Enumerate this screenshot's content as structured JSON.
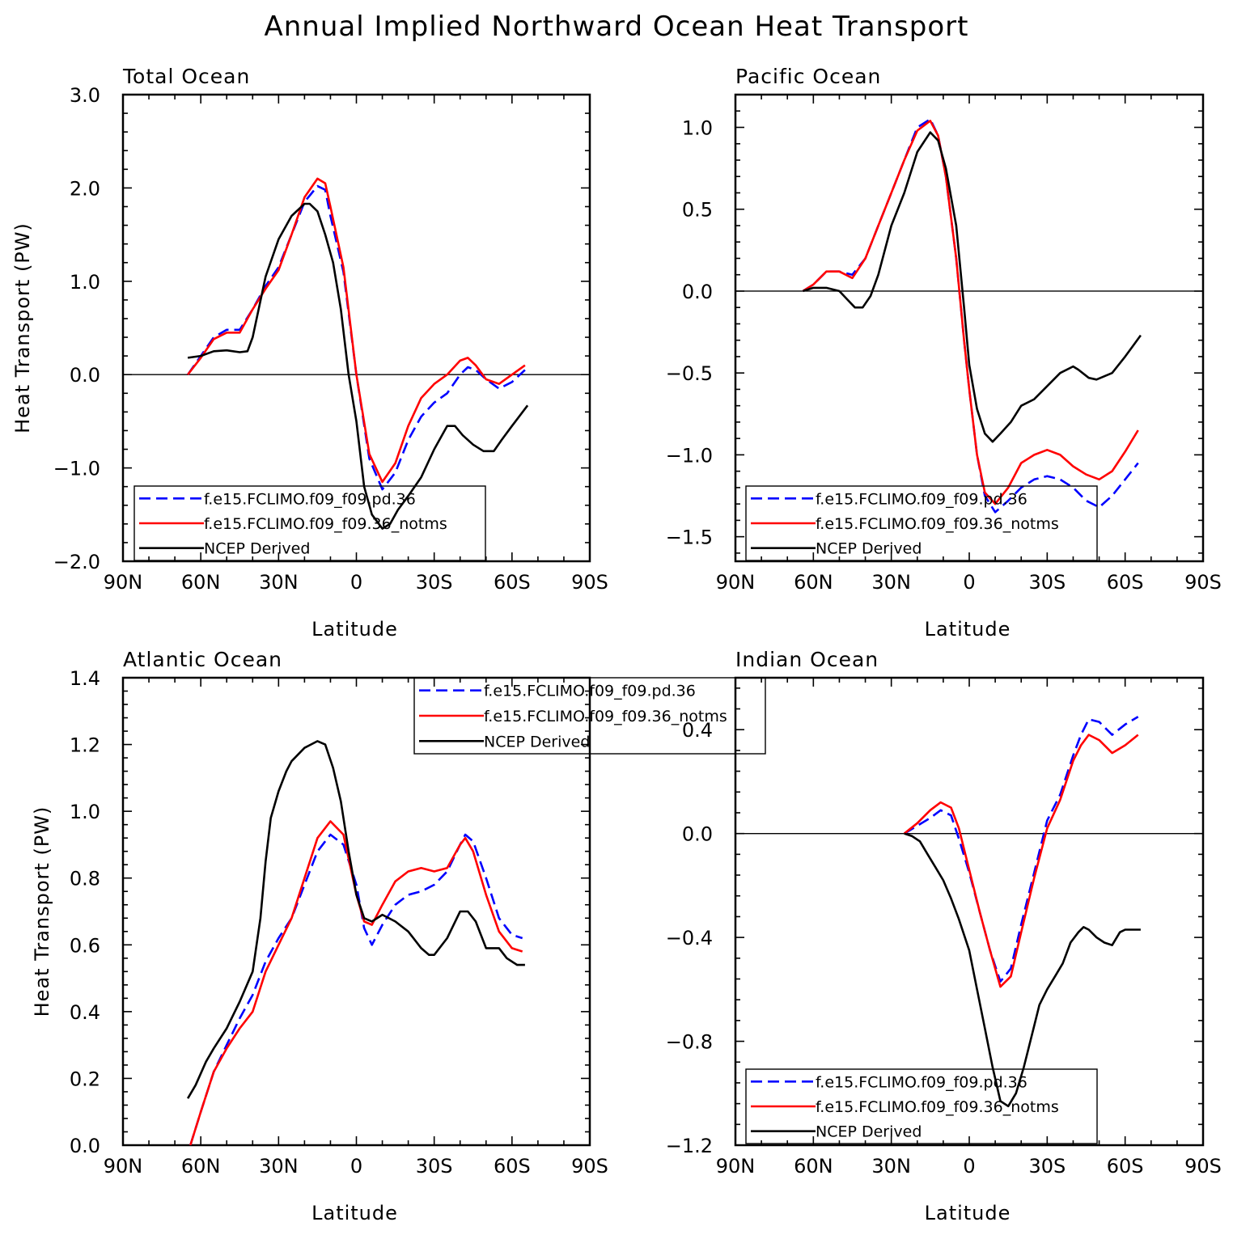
{
  "title": "Annual Implied Northward Ocean Heat Transport",
  "chart_data": [
    {
      "type": "line",
      "title": "Total Ocean",
      "xlabel": "Latitude",
      "ylabel": "Heat Transport (PW)",
      "xlim": [
        90,
        -90
      ],
      "ylim": [
        -2.0,
        3.0
      ],
      "x_ticks": [
        90,
        60,
        30,
        0,
        -30,
        -60,
        -90
      ],
      "x_tick_labels": [
        "90N",
        "60N",
        "30N",
        "0",
        "30S",
        "60S",
        "90S"
      ],
      "y_ticks": [
        -2.0,
        -1.0,
        0.0,
        1.0,
        2.0,
        3.0
      ],
      "y_tick_labels": [
        "−2.0",
        "−1.0",
        "0.0",
        "1.0",
        "2.0",
        "3.0"
      ],
      "zero_line": true,
      "legend_position": "bottom-left",
      "series": [
        {
          "name": "f.e15.FCLIMO.f09_f09.pd.36",
          "color": "#0000ff",
          "dash": "dashed",
          "x": [
            65,
            60,
            55,
            50,
            45,
            40,
            35,
            30,
            25,
            20,
            15,
            12,
            10,
            5,
            0,
            -5,
            -10,
            -15,
            -20,
            -25,
            -30,
            -35,
            -40,
            -43,
            -46,
            -50,
            -55,
            -60,
            -65
          ],
          "y": [
            0.0,
            0.2,
            0.4,
            0.48,
            0.48,
            0.7,
            0.95,
            1.15,
            1.5,
            1.85,
            2.02,
            1.98,
            1.7,
            1.1,
            0.0,
            -0.9,
            -1.23,
            -1.05,
            -0.7,
            -0.45,
            -0.3,
            -0.2,
            0.0,
            0.08,
            0.05,
            -0.05,
            -0.15,
            -0.08,
            0.05
          ]
        },
        {
          "name": "f.e15.FCLIMO.f09_f09.36_notms",
          "color": "#ff0000",
          "dash": "solid",
          "x": [
            65,
            60,
            55,
            50,
            45,
            40,
            35,
            30,
            25,
            20,
            15,
            12,
            10,
            5,
            0,
            -5,
            -10,
            -15,
            -20,
            -25,
            -30,
            -35,
            -40,
            -43,
            -46,
            -50,
            -55,
            -60,
            -65
          ],
          "y": [
            0.0,
            0.18,
            0.38,
            0.45,
            0.45,
            0.7,
            0.92,
            1.12,
            1.5,
            1.9,
            2.1,
            2.05,
            1.8,
            1.15,
            0.0,
            -0.85,
            -1.15,
            -0.95,
            -0.55,
            -0.25,
            -0.1,
            0.0,
            0.15,
            0.18,
            0.1,
            -0.05,
            -0.1,
            0.0,
            0.1
          ]
        },
        {
          "name": "NCEP Derived",
          "color": "#000000",
          "dash": "solid",
          "x": [
            65,
            60,
            55,
            50,
            45,
            42,
            40,
            35,
            30,
            25,
            20,
            18,
            15,
            12,
            9,
            6,
            3,
            0,
            -3,
            -6,
            -10,
            -13,
            -16,
            -20,
            -25,
            -30,
            -35,
            -38,
            -41,
            -45,
            -49,
            -53,
            -56,
            -60,
            -66
          ],
          "y": [
            0.18,
            0.2,
            0.25,
            0.26,
            0.24,
            0.25,
            0.4,
            1.05,
            1.45,
            1.7,
            1.83,
            1.83,
            1.75,
            1.5,
            1.2,
            0.7,
            0.0,
            -0.5,
            -1.2,
            -1.5,
            -1.65,
            -1.6,
            -1.45,
            -1.3,
            -1.1,
            -0.8,
            -0.55,
            -0.55,
            -0.65,
            -0.75,
            -0.82,
            -0.82,
            -0.7,
            -0.55,
            -0.33
          ]
        }
      ]
    },
    {
      "type": "line",
      "title": "Pacific Ocean",
      "xlabel": "Latitude",
      "ylabel": "",
      "xlim": [
        90,
        -90
      ],
      "ylim": [
        -1.65,
        1.2
      ],
      "x_ticks": [
        90,
        60,
        30,
        0,
        -30,
        -60,
        -90
      ],
      "x_tick_labels": [
        "90N",
        "60N",
        "30N",
        "0",
        "30S",
        "60S",
        "90S"
      ],
      "y_ticks": [
        -1.5,
        -1.0,
        -0.5,
        0.0,
        0.5,
        1.0
      ],
      "y_tick_labels": [
        "−1.5",
        "−1.0",
        "−0.5",
        "0.0",
        "0.5",
        "1.0"
      ],
      "zero_line": true,
      "legend_position": "bottom-left",
      "series": [
        {
          "name": "f.e15.FCLIMO.f09_f09.pd.36",
          "color": "#0000ff",
          "dash": "dashed",
          "x": [
            64,
            60,
            55,
            50,
            45,
            40,
            35,
            30,
            25,
            20,
            15,
            12,
            9,
            5,
            2,
            0,
            -3,
            -6,
            -10,
            -15,
            -20,
            -25,
            -30,
            -35,
            -40,
            -45,
            -50,
            -55,
            -60,
            -65
          ],
          "y": [
            0.0,
            0.04,
            0.12,
            0.12,
            0.1,
            0.2,
            0.4,
            0.6,
            0.8,
            1.0,
            1.05,
            0.95,
            0.7,
            0.2,
            -0.3,
            -0.6,
            -1.0,
            -1.25,
            -1.35,
            -1.28,
            -1.2,
            -1.15,
            -1.13,
            -1.15,
            -1.2,
            -1.28,
            -1.32,
            -1.25,
            -1.15,
            -1.05
          ]
        },
        {
          "name": "f.e15.FCLIMO.f09_f09.36_notms",
          "color": "#ff0000",
          "dash": "solid",
          "x": [
            64,
            60,
            55,
            50,
            45,
            40,
            35,
            30,
            25,
            20,
            15,
            12,
            9,
            5,
            2,
            0,
            -3,
            -6,
            -10,
            -15,
            -20,
            -25,
            -30,
            -35,
            -40,
            -45,
            -50,
            -55,
            -60,
            -65
          ],
          "y": [
            0.0,
            0.04,
            0.12,
            0.12,
            0.08,
            0.2,
            0.4,
            0.6,
            0.8,
            0.98,
            1.04,
            0.95,
            0.7,
            0.2,
            -0.3,
            -0.6,
            -1.0,
            -1.23,
            -1.3,
            -1.2,
            -1.05,
            -1.0,
            -0.97,
            -1.0,
            -1.07,
            -1.12,
            -1.15,
            -1.1,
            -0.98,
            -0.85
          ]
        },
        {
          "name": "NCEP Derived",
          "color": "#000000",
          "dash": "solid",
          "x": [
            64,
            60,
            55,
            50,
            47,
            44,
            41,
            38,
            35,
            30,
            25,
            20,
            15,
            12,
            9,
            5,
            2,
            0,
            -3,
            -6,
            -9,
            -12,
            -16,
            -20,
            -25,
            -30,
            -35,
            -40,
            -42,
            -46,
            -49,
            -55,
            -60,
            -66
          ],
          "y": [
            0.0,
            0.02,
            0.02,
            0.0,
            -0.05,
            -0.1,
            -0.1,
            -0.03,
            0.1,
            0.4,
            0.6,
            0.85,
            0.97,
            0.92,
            0.75,
            0.4,
            -0.1,
            -0.45,
            -0.72,
            -0.87,
            -0.92,
            -0.87,
            -0.8,
            -0.7,
            -0.66,
            -0.58,
            -0.5,
            -0.46,
            -0.48,
            -0.53,
            -0.54,
            -0.5,
            -0.4,
            -0.27
          ]
        }
      ]
    },
    {
      "type": "line",
      "title": "Atlantic Ocean",
      "xlabel": "Latitude",
      "ylabel": "Heat Transport (PW)",
      "xlim": [
        90,
        -90
      ],
      "ylim": [
        0.0,
        1.4
      ],
      "x_ticks": [
        90,
        60,
        30,
        0,
        -30,
        -60,
        -90
      ],
      "x_tick_labels": [
        "90N",
        "60N",
        "30N",
        "0",
        "30S",
        "60S",
        "90S"
      ],
      "y_ticks": [
        0.0,
        0.2,
        0.4,
        0.6,
        0.8,
        1.0,
        1.2,
        1.4
      ],
      "y_tick_labels": [
        "0.0",
        "0.2",
        "0.4",
        "0.6",
        "0.8",
        "1.0",
        "1.2",
        "1.4"
      ],
      "zero_line": false,
      "legend_position": "top-right",
      "series": [
        {
          "name": "f.e15.FCLIMO.f09_f09.pd.36",
          "color": "#0000ff",
          "dash": "dashed",
          "x": [
            64,
            60,
            55,
            50,
            45,
            40,
            35,
            30,
            25,
            20,
            15,
            10,
            5,
            0,
            -3,
            -6,
            -10,
            -15,
            -20,
            -25,
            -30,
            -35,
            -40,
            -42,
            -45,
            -50,
            -55,
            -60,
            -64
          ],
          "y": [
            0.0,
            0.1,
            0.22,
            0.3,
            0.38,
            0.45,
            0.55,
            0.62,
            0.68,
            0.78,
            0.88,
            0.93,
            0.9,
            0.78,
            0.65,
            0.6,
            0.66,
            0.72,
            0.75,
            0.76,
            0.78,
            0.82,
            0.9,
            0.93,
            0.91,
            0.8,
            0.68,
            0.63,
            0.62
          ]
        },
        {
          "name": "f.e15.FCLIMO.f09_f09.36_notms",
          "color": "#ff0000",
          "dash": "solid",
          "x": [
            64,
            60,
            55,
            50,
            45,
            40,
            35,
            30,
            25,
            20,
            15,
            10,
            5,
            0,
            -3,
            -6,
            -10,
            -15,
            -20,
            -25,
            -30,
            -35,
            -40,
            -42,
            -45,
            -50,
            -55,
            -60,
            -64
          ],
          "y": [
            0.0,
            0.1,
            0.22,
            0.29,
            0.35,
            0.4,
            0.52,
            0.6,
            0.68,
            0.8,
            0.92,
            0.97,
            0.93,
            0.75,
            0.67,
            0.66,
            0.72,
            0.79,
            0.82,
            0.83,
            0.82,
            0.83,
            0.9,
            0.92,
            0.88,
            0.75,
            0.64,
            0.59,
            0.58
          ]
        },
        {
          "name": "NCEP Derived",
          "color": "#000000",
          "dash": "solid",
          "x": [
            65,
            62,
            58,
            55,
            50,
            45,
            40,
            37,
            35,
            33,
            30,
            27,
            25,
            20,
            15,
            12,
            9,
            6,
            3,
            0,
            -3,
            -6,
            -10,
            -15,
            -20,
            -25,
            -28,
            -30,
            -35,
            -40,
            -43,
            -46,
            -50,
            -55,
            -58,
            -62,
            -65
          ],
          "y": [
            0.14,
            0.18,
            0.25,
            0.29,
            0.35,
            0.43,
            0.52,
            0.68,
            0.85,
            0.98,
            1.06,
            1.12,
            1.15,
            1.19,
            1.21,
            1.2,
            1.13,
            1.03,
            0.88,
            0.75,
            0.68,
            0.67,
            0.69,
            0.67,
            0.64,
            0.59,
            0.57,
            0.57,
            0.62,
            0.7,
            0.7,
            0.67,
            0.59,
            0.59,
            0.56,
            0.54,
            0.54
          ]
        }
      ]
    },
    {
      "type": "line",
      "title": "Indian Ocean",
      "xlabel": "Latitude",
      "ylabel": "",
      "xlim": [
        90,
        -90
      ],
      "ylim": [
        -1.2,
        0.6
      ],
      "x_ticks": [
        90,
        60,
        30,
        0,
        -30,
        -60,
        -90
      ],
      "x_tick_labels": [
        "90N",
        "60N",
        "30N",
        "0",
        "30S",
        "60S",
        "90S"
      ],
      "y_ticks": [
        -1.2,
        -0.8,
        -0.4,
        0.0,
        0.4
      ],
      "y_tick_labels": [
        "−1.2",
        "−0.8",
        "−0.4",
        "0.0",
        "0.4"
      ],
      "zero_line": true,
      "legend_position": "bottom-left",
      "series": [
        {
          "name": "f.e15.FCLIMO.f09_f09.pd.36",
          "color": "#0000ff",
          "dash": "dashed",
          "x": [
            25,
            20,
            15,
            11,
            7,
            4,
            0,
            -4,
            -8,
            -12,
            -16,
            -20,
            -25,
            -30,
            -35,
            -40,
            -43,
            -46,
            -50,
            -55,
            -60,
            -65
          ],
          "y": [
            0.0,
            0.03,
            0.06,
            0.09,
            0.07,
            -0.02,
            -0.15,
            -0.3,
            -0.45,
            -0.57,
            -0.52,
            -0.35,
            -0.15,
            0.05,
            0.15,
            0.3,
            0.38,
            0.44,
            0.43,
            0.38,
            0.42,
            0.45
          ]
        },
        {
          "name": "f.e15.FCLIMO.f09_f09.36_notms",
          "color": "#ff0000",
          "dash": "solid",
          "x": [
            25,
            20,
            15,
            11,
            7,
            4,
            0,
            -4,
            -8,
            -12,
            -16,
            -20,
            -25,
            -30,
            -35,
            -40,
            -43,
            -46,
            -50,
            -55,
            -60,
            -65
          ],
          "y": [
            0.0,
            0.04,
            0.09,
            0.12,
            0.1,
            0.02,
            -0.14,
            -0.3,
            -0.45,
            -0.59,
            -0.55,
            -0.38,
            -0.17,
            0.02,
            0.13,
            0.28,
            0.34,
            0.38,
            0.36,
            0.31,
            0.34,
            0.38
          ]
        },
        {
          "name": "NCEP Derived",
          "color": "#000000",
          "dash": "solid",
          "x": [
            25,
            22,
            19,
            16,
            13,
            10,
            7,
            4,
            0,
            -3,
            -6,
            -9,
            -12,
            -15,
            -18,
            -21,
            -24,
            -27,
            -30,
            -33,
            -36,
            -39,
            -42,
            -44,
            -46,
            -49,
            -52,
            -55,
            -58,
            -60,
            -66
          ],
          "y": [
            0.0,
            -0.01,
            -0.03,
            -0.08,
            -0.13,
            -0.18,
            -0.25,
            -0.33,
            -0.45,
            -0.6,
            -0.75,
            -0.9,
            -1.03,
            -1.05,
            -1.0,
            -0.9,
            -0.78,
            -0.66,
            -0.6,
            -0.55,
            -0.5,
            -0.42,
            -0.38,
            -0.36,
            -0.37,
            -0.4,
            -0.42,
            -0.43,
            -0.38,
            -0.37,
            -0.37
          ]
        }
      ]
    }
  ]
}
